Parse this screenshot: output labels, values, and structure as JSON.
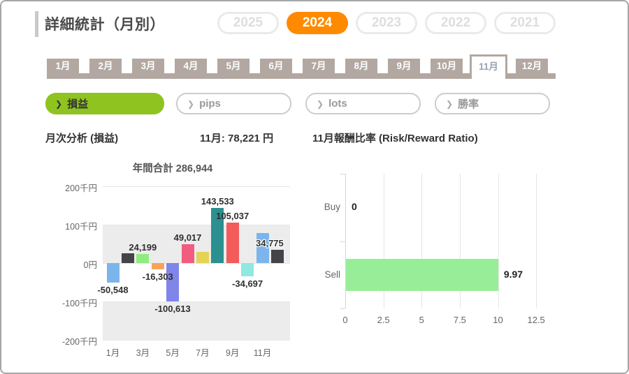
{
  "window": {
    "border_color": "#a6a6a6",
    "background": "#ffffff"
  },
  "header": {
    "title": "詳細統計（月別）",
    "accent_color": "#c9c9c9",
    "active_year_bg": "#ff8a00",
    "years": [
      {
        "label": "2025",
        "active": false
      },
      {
        "label": "2024",
        "active": true
      },
      {
        "label": "2023",
        "active": false
      },
      {
        "label": "2022",
        "active": false
      },
      {
        "label": "2021",
        "active": false
      }
    ]
  },
  "month_tabs": {
    "bar_color": "#b2a8a1",
    "active": "11月",
    "tabs": [
      "1月",
      "2月",
      "3月",
      "4月",
      "5月",
      "6月",
      "7月",
      "8月",
      "9月",
      "10月",
      "11月",
      "12月"
    ]
  },
  "filters": {
    "active_bg": "#8fc31f",
    "chevron_icon": "❯",
    "items": [
      {
        "label": "損益",
        "active": true
      },
      {
        "label": "pips",
        "active": false
      },
      {
        "label": "lots",
        "active": false
      },
      {
        "label": "勝率",
        "active": false
      }
    ]
  },
  "section": {
    "left_title": "月次分析 (損益)",
    "month_total": "11月:  78,221 円",
    "right_title": "11月報酬比率 (Risk/Reward Ratio)"
  },
  "chart_data": [
    {
      "id": "monthly-profit-loss",
      "type": "bar",
      "title": "年間合計 286,944",
      "categories": [
        "1月",
        "2月",
        "3月",
        "4月",
        "5月",
        "6月",
        "7月",
        "8月",
        "9月",
        "10月",
        "11月",
        "12月"
      ],
      "values": [
        -50548,
        25000,
        24199,
        -16303,
        -100613,
        49017,
        29323,
        143533,
        105037,
        -34697,
        78221,
        34775
      ],
      "labels": [
        "-50,548",
        null,
        "24,199",
        "-16,303",
        "-100,613",
        "49,017",
        null,
        "143,533",
        "105,037",
        "-34,697",
        null,
        "34,775"
      ],
      "estimated_values_note": "2月 and 7月 values estimated from bar heights; their data labels are hidden in the source",
      "colors": [
        "#7cb5ec",
        "#434348",
        "#90ed7d",
        "#f7a35c",
        "#8085e9",
        "#f15c80",
        "#e4d354",
        "#2b908f",
        "#f45b5b",
        "#91e8e1",
        "#7cb5ec",
        "#434348"
      ],
      "x_tick_labels": [
        "1月",
        "3月",
        "5月",
        "7月",
        "9月",
        "11月"
      ],
      "y_tick_labels": [
        "200千円",
        "100千円",
        "0円",
        "-100千円",
        "-200千円"
      ],
      "ylim": [
        -200000,
        200000
      ],
      "band_color": "#ececec",
      "grid_color": "#e6e6e6",
      "overlap_label": {
        "index": 11,
        "dx": -11,
        "outlined": true
      }
    },
    {
      "id": "risk-reward-ratio",
      "type": "bar_horizontal",
      "categories": [
        "Buy",
        "Sell"
      ],
      "values": [
        0,
        9.97
      ],
      "labels": [
        "0",
        "9.97"
      ],
      "x_tick_labels": [
        "0",
        "2.5",
        "5",
        "7.5",
        "10",
        "12.5"
      ],
      "xlim": [
        0,
        13.75
      ],
      "bar_color": "#98ee98",
      "axis_color": "#ccd6eb",
      "grid_color": "#e6e6e6"
    }
  ]
}
